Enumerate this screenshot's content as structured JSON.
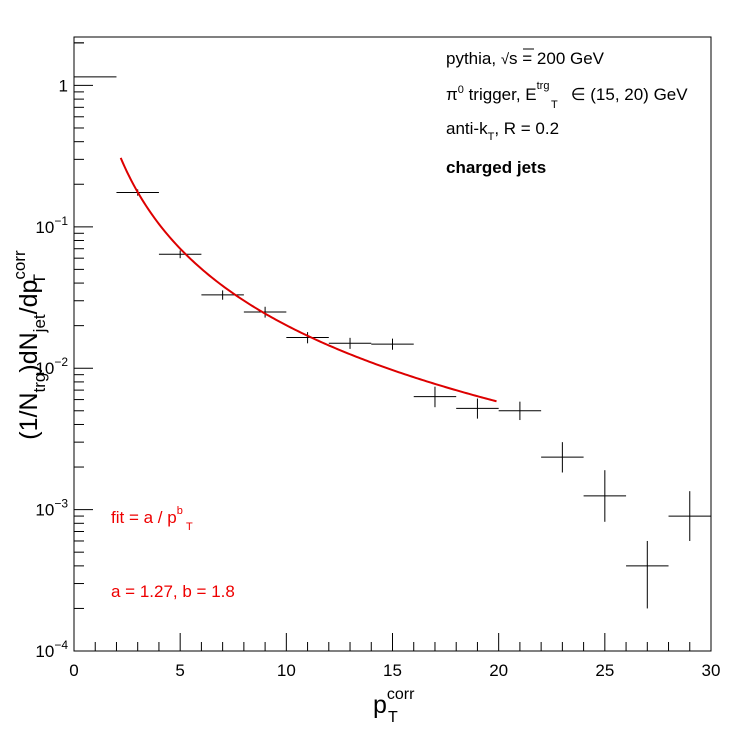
{
  "chart_data": {
    "type": "scatter",
    "title": "",
    "xlabel": {
      "base": "p",
      "sub": "T",
      "sup": "corr"
    },
    "ylabel": {
      "parts": [
        {
          "t": "(1/N",
          "k": "n"
        },
        {
          "t": "trg",
          "k": "sub"
        },
        {
          "t": ")dN",
          "k": "n"
        },
        {
          "t": "jet",
          "k": "sub"
        },
        {
          "t": "/dp",
          "k": "n"
        },
        {
          "t": "corr",
          "k": "sup"
        },
        {
          "t": "T",
          "k": "sub"
        }
      ]
    },
    "xlim": [
      0,
      30
    ],
    "ylim": [
      0.0001,
      2.2
    ],
    "yscale": "log",
    "grid": false,
    "x_ticks": [
      0,
      5,
      10,
      15,
      20,
      25,
      30
    ],
    "x_tick_labels": [
      "0",
      "5",
      "10",
      "15",
      "20",
      "25",
      "30"
    ],
    "y_major_ticks": [
      {
        "value": 1,
        "base": "1",
        "exp": ""
      },
      {
        "value": 0.1,
        "base": "10",
        "exp": "−1"
      },
      {
        "value": 0.01,
        "base": "10",
        "exp": "−2"
      },
      {
        "value": 0.001,
        "base": "10",
        "exp": "−3"
      },
      {
        "value": 0.0001,
        "base": "10",
        "exp": "−4"
      }
    ],
    "data": {
      "color": "#000000",
      "points": [
        {
          "x": 1,
          "xerr": 1,
          "y": 1.15,
          "ylo": 1.15,
          "yhi": 1.15
        },
        {
          "x": 3,
          "xerr": 1,
          "y": 0.175,
          "ylo": 0.166,
          "yhi": 0.184
        },
        {
          "x": 5,
          "xerr": 1,
          "y": 0.064,
          "ylo": 0.06,
          "yhi": 0.068
        },
        {
          "x": 7,
          "xerr": 1,
          "y": 0.033,
          "ylo": 0.0305,
          "yhi": 0.0355
        },
        {
          "x": 9,
          "xerr": 1,
          "y": 0.025,
          "ylo": 0.0228,
          "yhi": 0.0272
        },
        {
          "x": 11,
          "xerr": 1,
          "y": 0.0165,
          "ylo": 0.015,
          "yhi": 0.018
        },
        {
          "x": 13,
          "xerr": 1,
          "y": 0.015,
          "ylo": 0.0137,
          "yhi": 0.0164
        },
        {
          "x": 15,
          "xerr": 1,
          "y": 0.0148,
          "ylo": 0.0135,
          "yhi": 0.0162
        },
        {
          "x": 17,
          "xerr": 1,
          "y": 0.0063,
          "ylo": 0.0053,
          "yhi": 0.0074
        },
        {
          "x": 19,
          "xerr": 1,
          "y": 0.0052,
          "ylo": 0.0044,
          "yhi": 0.0061
        },
        {
          "x": 21,
          "xerr": 1,
          "y": 0.005,
          "ylo": 0.0043,
          "yhi": 0.0058
        },
        {
          "x": 23,
          "xerr": 1,
          "y": 0.00235,
          "ylo": 0.00183,
          "yhi": 0.003
        },
        {
          "x": 25,
          "xerr": 1,
          "y": 0.00125,
          "ylo": 0.00082,
          "yhi": 0.0019
        },
        {
          "x": 27,
          "xerr": 1,
          "y": 0.0004,
          "ylo": 0.0002,
          "yhi": 0.0006
        },
        {
          "x": 29,
          "xerr": 1,
          "y": 0.0009,
          "ylo": 0.0006,
          "yhi": 0.00135
        }
      ]
    },
    "fit": {
      "color": "#dd0000",
      "a": 1.27,
      "b": 1.8,
      "x_range": [
        2.2,
        19.9
      ]
    },
    "legend_block": {
      "line1": {
        "pre": "pythia, ",
        "sqrt_arg": "s",
        "post": " = 200 GeV"
      },
      "line2": {
        "pi": "π",
        "pi_sup": "0",
        "mid": " trigger, E",
        "e_sup": "trg",
        "e_sub": "T",
        "post": " ∈ (15, 20) GeV"
      },
      "line3": {
        "pre": "anti-k",
        "sub": "T",
        "post": ", R = 0.2"
      },
      "line4": "charged jets"
    },
    "fit_annotation": {
      "pre": "fit = a / p",
      "sup": "b",
      "sub": "T",
      "params": "a = 1.27, b = 1.8",
      "color": "#ee0000"
    }
  }
}
